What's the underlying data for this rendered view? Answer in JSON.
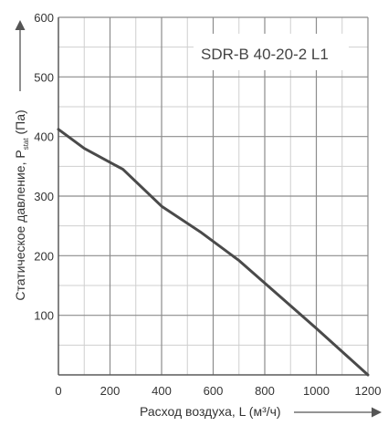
{
  "chart_data": {
    "type": "line",
    "annotation": "SDR-B 40-20-2 L1",
    "xlabel": "Расход воздуха, L (м³/ч)",
    "ylabel_main": "Статическое давление, P",
    "ylabel_subscript": "stat",
    "ylabel_suffix": " (Па)",
    "xlim": [
      0,
      1200
    ],
    "ylim": [
      0,
      600
    ],
    "x_ticks": [
      0,
      200,
      400,
      600,
      800,
      1000,
      1200
    ],
    "x_tick_labels": [
      "0",
      "200",
      "400",
      "600",
      "800",
      "1000",
      "1200"
    ],
    "y_ticks": [
      100,
      200,
      300,
      400,
      500,
      600
    ],
    "y_tick_labels": [
      "100",
      "200",
      "300",
      "400",
      "500",
      "600"
    ],
    "grid": true,
    "grid_minor_x_step": 100,
    "grid_minor_y_step": 50,
    "series": [
      {
        "x": [
          0,
          100,
          250,
          400,
          550,
          700,
          850,
          1000,
          1200
        ],
        "y": [
          412,
          380,
          345,
          283,
          240,
          192,
          135,
          78,
          0
        ],
        "color": "#4a4a4a"
      }
    ],
    "colors": {
      "major_grid": "#8c8c8c",
      "minor_grid": "#cfcfcf",
      "axis": "#5a5a5a",
      "text": "#333333"
    }
  }
}
